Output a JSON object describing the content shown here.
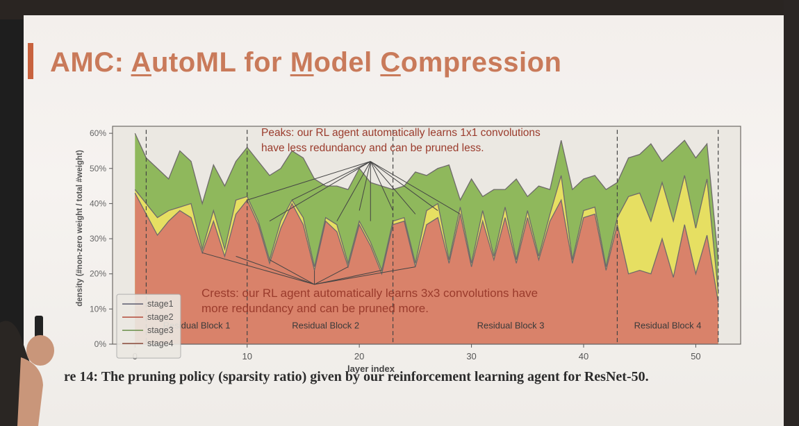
{
  "slide": {
    "title_parts": [
      {
        "text": "AMC: ",
        "u": false
      },
      {
        "text": "A",
        "u": true
      },
      {
        "text": "utoML for ",
        "u": false
      },
      {
        "text": "M",
        "u": true
      },
      {
        "text": "odel ",
        "u": false
      },
      {
        "text": "C",
        "u": true
      },
      {
        "text": "ompression",
        "u": false
      }
    ],
    "caption": "re 14: The pruning policy (sparsity ratio) given by our reinforcement learning agent for ResNet-50.",
    "accent_color": "#c8623e",
    "title_color": "#c97a5a"
  },
  "chart_data": {
    "type": "area",
    "xlabel": "layer index",
    "ylabel": "density (#non-zero weight / total #weight)",
    "xlim": [
      -2,
      54
    ],
    "ylim": [
      0,
      62
    ],
    "x_ticks": [
      0,
      10,
      20,
      30,
      40,
      50
    ],
    "y_ticks": [
      0,
      10,
      20,
      30,
      40,
      50,
      60
    ],
    "y_tick_labels": [
      "0%",
      "10%",
      "20%",
      "30%",
      "40%",
      "50%",
      "60%"
    ],
    "legend": {
      "placement": "lower-left",
      "entries": [
        "stage1",
        "stage2",
        "stage3",
        "stage4"
      ]
    },
    "series": [
      {
        "name": "stage4",
        "color": "#8fb85c",
        "x": [
          0,
          1,
          2,
          3,
          4,
          5,
          6,
          7,
          8,
          9,
          10,
          11,
          12,
          13,
          14,
          15,
          16,
          17,
          18,
          19,
          20,
          21,
          22,
          23,
          24,
          25,
          26,
          27,
          28,
          29,
          30,
          31,
          32,
          33,
          34,
          35,
          36,
          37,
          38,
          39,
          40,
          41,
          42,
          43,
          44,
          45,
          46,
          47,
          48,
          49,
          50,
          51,
          52
        ],
        "values": [
          60,
          53,
          50,
          47,
          55,
          52,
          40,
          51,
          45,
          52,
          56,
          52,
          48,
          50,
          55,
          53,
          47,
          45,
          45,
          44,
          50,
          46,
          45,
          44,
          45,
          49,
          48,
          50,
          51,
          41,
          47,
          42,
          44,
          44,
          47,
          42,
          45,
          44,
          58,
          44,
          47,
          48,
          44,
          46,
          53,
          54,
          57,
          52,
          55,
          58,
          53,
          57,
          24
        ]
      },
      {
        "name": "stage3",
        "color": "#e6df62",
        "x": [
          0,
          1,
          2,
          3,
          4,
          5,
          6,
          7,
          8,
          9,
          10,
          11,
          12,
          13,
          14,
          15,
          16,
          17,
          18,
          19,
          20,
          21,
          22,
          23,
          24,
          25,
          26,
          27,
          28,
          29,
          30,
          31,
          32,
          33,
          34,
          35,
          36,
          37,
          38,
          39,
          40,
          41,
          42,
          43,
          44,
          45,
          46,
          47,
          48,
          49,
          50,
          51,
          52
        ],
        "values": [
          44,
          40,
          36,
          38,
          39,
          40,
          27,
          38,
          27,
          41,
          42,
          35,
          24,
          35,
          41,
          36,
          22,
          36,
          34,
          23,
          35,
          29,
          21,
          35,
          36,
          23,
          38,
          40,
          24,
          39,
          23,
          38,
          25,
          39,
          24,
          38,
          25,
          37,
          48,
          24,
          38,
          39,
          22,
          36,
          42,
          43,
          35,
          46,
          35,
          48,
          33,
          47,
          15
        ]
      },
      {
        "name": "stage2",
        "color": "#d9826a",
        "x": [
          0,
          1,
          2,
          3,
          4,
          5,
          6,
          7,
          8,
          9,
          10,
          11,
          12,
          13,
          14,
          15,
          16,
          17,
          18,
          19,
          20,
          21,
          22,
          23,
          24,
          25,
          26,
          27,
          28,
          29,
          30,
          31,
          32,
          33,
          34,
          35,
          36,
          37,
          38,
          39,
          40,
          41,
          42,
          43,
          44,
          45,
          46,
          47,
          48,
          49,
          50,
          51,
          52
        ],
        "values": [
          43,
          37,
          31,
          35,
          38,
          36,
          26,
          35,
          25,
          37,
          41,
          34,
          23,
          33,
          40,
          34,
          21,
          35,
          32,
          22,
          34,
          28,
          20,
          34,
          35,
          22,
          34,
          36,
          23,
          37,
          22,
          35,
          24,
          36,
          23,
          36,
          24,
          35,
          41,
          23,
          36,
          37,
          21,
          34,
          20,
          21,
          20,
          30,
          19,
          34,
          20,
          31,
          12
        ]
      },
      {
        "name": "stage1",
        "color": "#e7e4dd",
        "x": [
          0,
          1,
          2,
          3,
          4,
          5,
          6,
          7,
          8,
          9,
          10,
          11,
          12,
          13,
          14,
          15,
          16,
          17,
          18,
          19,
          20,
          21,
          22,
          23,
          24,
          25,
          26,
          27,
          28,
          29,
          30,
          31,
          32,
          33,
          34,
          35,
          36,
          37,
          38,
          39,
          40,
          41,
          42,
          43,
          44,
          45,
          46,
          47,
          48,
          49,
          50,
          51,
          52
        ],
        "values": [
          0,
          0,
          0,
          0,
          0,
          0,
          0,
          0,
          0,
          0,
          0,
          0,
          0,
          0,
          0,
          0,
          0,
          0,
          0,
          0,
          0,
          0,
          0,
          0,
          0,
          0,
          0,
          0,
          0,
          0,
          0,
          0,
          0,
          0,
          0,
          0,
          0,
          0,
          0,
          0,
          0,
          0,
          0,
          0,
          0,
          0,
          0,
          0,
          0,
          0,
          0,
          0,
          0
        ]
      }
    ],
    "block_dividers": [
      1,
      10,
      23,
      43,
      52
    ],
    "blocks": [
      {
        "label": "Residual Block 1",
        "x": 5.5
      },
      {
        "label": "Residual Block 2",
        "x": 17
      },
      {
        "label": "Residual Block 3",
        "x": 33.5
      },
      {
        "label": "Residual Block 4",
        "x": 47.5
      }
    ],
    "annotations": {
      "peaks": {
        "lines": [
          "Peaks: our RL agent automatically learns 1x1 convolutions",
          "have less redundancy and can be pruned less."
        ],
        "targets": [
          [
            10,
            41
          ],
          [
            12,
            35
          ],
          [
            14,
            41
          ],
          [
            18,
            35
          ],
          [
            20,
            38
          ],
          [
            21,
            35
          ],
          [
            23,
            38
          ],
          [
            25,
            37
          ],
          [
            27,
            38
          ],
          [
            29,
            37
          ]
        ],
        "source": [
          21,
          52
        ]
      },
      "crests": {
        "lines": [
          "Crests: our RL agent automatically learns 3x3 convolutions have",
          "more redundancy and can be pruned more."
        ],
        "targets": [
          [
            6,
            26
          ],
          [
            9,
            25
          ],
          [
            12,
            24
          ],
          [
            16,
            21
          ],
          [
            19,
            22
          ],
          [
            22,
            21
          ],
          [
            25,
            22
          ]
        ],
        "source": [
          16,
          17
        ]
      }
    }
  }
}
